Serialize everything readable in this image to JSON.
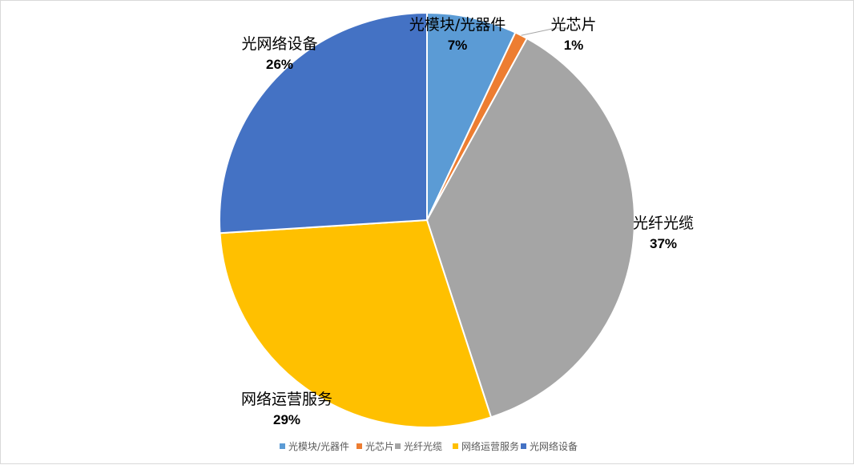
{
  "chart_data": {
    "type": "pie",
    "title": "",
    "categories": [
      "光模块/光器件",
      "光芯片",
      "光纤光缆",
      "网络运营服务",
      "光网络设备"
    ],
    "values": [
      7,
      1,
      37,
      29,
      26
    ],
    "labels": [
      "7%",
      "1%",
      "37%",
      "29%",
      "26%"
    ],
    "colors": [
      "#5B9BD5",
      "#ED7D31",
      "#A5A5A5",
      "#FFC000",
      "#4472C4"
    ],
    "start_angle_deg": 0,
    "direction": "clockwise",
    "legend_position": "bottom"
  }
}
